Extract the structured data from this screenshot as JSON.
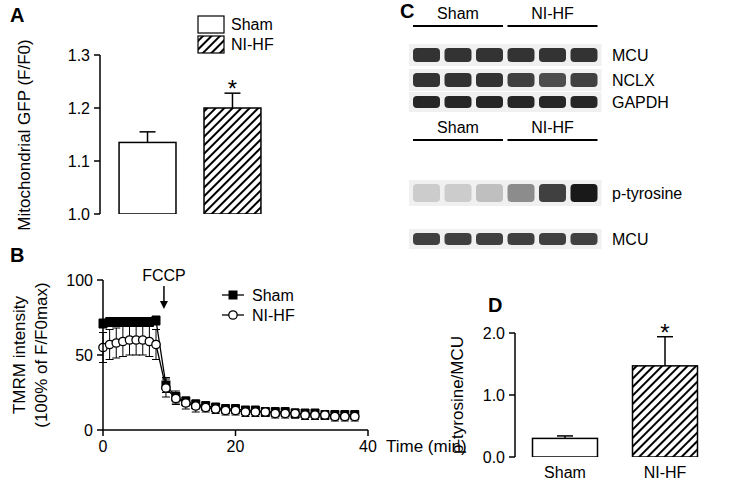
{
  "chart_data": [
    {
      "type": "bar",
      "title": "A",
      "y_label": "Mitochondrial GFP (F/F0)",
      "categories": [
        null
      ],
      "series": [
        {
          "name": "Sham",
          "color": "#ffffff",
          "values": [
            1.135
          ],
          "errors": [
            0.02
          ]
        },
        {
          "name": "NI-HF",
          "color": "#000000",
          "values": [
            1.2
          ],
          "errors": [
            0.028
          ]
        }
      ],
      "ylim": [
        1.0,
        1.3
      ],
      "yticks": [
        {
          "value": 1.0,
          "label": "1.0"
        },
        {
          "value": 1.1,
          "label": "1.1"
        },
        {
          "value": 1.2,
          "label": "1.2"
        },
        {
          "value": 1.3,
          "label": "1.3"
        }
      ],
      "tick_labels": "y",
      "legend": "top-right",
      "annotations": [
        {
          "text": "*",
          "series": 1,
          "index": 0
        }
      ]
    },
    {
      "type": "line",
      "title": "B",
      "x_label": "Time (min)",
      "y_label": [
        "TMRM intensity",
        "(100% of F/F0max)"
      ],
      "x": [
        0,
        1,
        2,
        3,
        4,
        5,
        6,
        7,
        8,
        9.5,
        11,
        12.5,
        14,
        15.5,
        17,
        18.5,
        20,
        21.5,
        23,
        24.5,
        26,
        27.5,
        29,
        30.5,
        32,
        33.5,
        35,
        36.5,
        38
      ],
      "series": [
        {
          "name": "Sham",
          "color": "#000000",
          "marker": "square",
          "values": [
            71,
            72,
            72,
            72,
            72,
            72,
            72,
            72,
            73,
            30,
            22,
            19,
            17,
            16,
            15,
            14,
            14,
            13,
            13,
            12,
            12,
            12,
            11,
            11,
            11,
            10,
            10,
            10,
            10
          ],
          "errors": [
            3,
            3,
            3,
            3,
            3,
            3,
            3,
            3,
            3,
            5,
            4,
            3,
            3,
            3,
            3,
            3,
            3,
            3,
            3,
            3,
            3,
            3,
            3,
            3,
            3,
            3,
            3,
            3,
            3
          ]
        },
        {
          "name": "NI-HF",
          "color": "#000000",
          "marker": "open-circle",
          "values": [
            55,
            57,
            58,
            59,
            60,
            60,
            60,
            59,
            57,
            28,
            21,
            18,
            16,
            15,
            14,
            13,
            13,
            12,
            12,
            12,
            11,
            11,
            11,
            10,
            10,
            10,
            9,
            9,
            9
          ],
          "errors": [
            10,
            10,
            10,
            10,
            10,
            10,
            10,
            10,
            10,
            6,
            4,
            4,
            4,
            3,
            3,
            3,
            3,
            3,
            3,
            3,
            3,
            3,
            3,
            3,
            3,
            3,
            3,
            3,
            3
          ]
        }
      ],
      "xlim": [
        0,
        40
      ],
      "ylim": [
        0,
        100
      ],
      "xticks": [
        0,
        20,
        40
      ],
      "yticks": [
        0,
        50,
        100
      ],
      "legend": "top-right",
      "annotations": [
        {
          "text": "FCCP",
          "x": 9.2
        }
      ]
    },
    {
      "type": "bar",
      "title": "D",
      "y_label": "p-tyrosine/MCU",
      "categories": [
        "Sham",
        "NI-HF"
      ],
      "values": [
        0.3,
        1.47
      ],
      "errors": [
        0.04,
        0.47
      ],
      "colors": [
        "#ffffff",
        "#000000"
      ],
      "ylim": [
        0,
        2.0
      ],
      "yticks": [
        {
          "value": 0,
          "label": "0.0"
        },
        {
          "value": 1.0,
          "label": "1.0"
        },
        {
          "value": 2.0,
          "label": "2.0"
        }
      ],
      "annotations": [
        {
          "text": "*",
          "index": 1
        }
      ]
    }
  ],
  "blot": {
    "title": "C",
    "panels": [
      {
        "groups": [
          {
            "label": "Sham",
            "lanes": 3
          },
          {
            "label": "NI-HF",
            "lanes": 3
          }
        ],
        "rows": [
          {
            "label": "MCU",
            "intensity": [
              0.8,
              0.8,
              0.8,
              0.8,
              0.8,
              0.8
            ]
          },
          {
            "label": "NCLX",
            "intensity": [
              0.8,
              0.8,
              0.8,
              0.75,
              0.7,
              0.75
            ]
          },
          {
            "label": "GAPDH",
            "intensity": [
              0.85,
              0.85,
              0.85,
              0.85,
              0.85,
              0.85
            ]
          }
        ]
      },
      {
        "groups": [
          {
            "label": "Sham",
            "lanes": 3
          },
          {
            "label": "NI-HF",
            "lanes": 3
          }
        ],
        "rows": [
          {
            "label": "p-tyrosine",
            "intensity": [
              0.2,
              0.2,
              0.25,
              0.45,
              0.75,
              0.9
            ]
          },
          {
            "label": "MCU",
            "intensity": [
              0.75,
              0.75,
              0.75,
              0.75,
              0.75,
              0.75
            ]
          }
        ]
      }
    ]
  }
}
